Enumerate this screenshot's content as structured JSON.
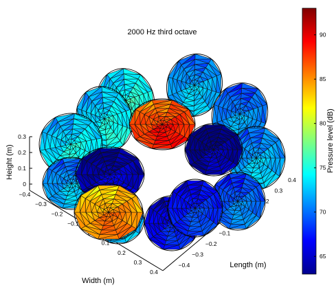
{
  "chart_data": {
    "type": "3d-surface",
    "title": "2000 Hz third octave",
    "xlabel": "Width (m)",
    "ylabel": "Length (m)",
    "zlabel": "Height (m)",
    "x_ticks": [
      "−0.4",
      "−0.3",
      "−0.2",
      "−0.1",
      "0",
      "0.1",
      "0.2",
      "0.3",
      "0.4"
    ],
    "y_ticks": [
      "−0.4",
      "−0.3",
      "−0.2",
      "−0.1",
      "0",
      "0.1",
      "0.2",
      "0.3",
      "0.4"
    ],
    "z_ticks": [
      "0",
      "0.1",
      "0.2",
      "0.3"
    ],
    "xlim": [
      -0.4,
      0.4
    ],
    "ylim": [
      -0.4,
      0.4
    ],
    "zlim": [
      0,
      0.3
    ],
    "colorbar": {
      "label": "Pressure level (dB)",
      "ticks": [
        "65",
        "70",
        "75",
        "80",
        "85",
        "90"
      ],
      "range": [
        63,
        93
      ],
      "colormap": "jet"
    },
    "grid": false,
    "units": [
      {
        "id": "u1",
        "level_db": 75
      },
      {
        "id": "u2",
        "level_db": 72
      },
      {
        "id": "u3",
        "level_db": 74
      },
      {
        "id": "u4",
        "level_db": 71
      },
      {
        "id": "u5",
        "level_db": 74
      },
      {
        "id": "u6",
        "level_db": 72
      },
      {
        "id": "u7",
        "level_db": 88
      },
      {
        "id": "u8",
        "level_db": 64
      },
      {
        "id": "u9",
        "level_db": 72
      },
      {
        "id": "u10",
        "level_db": 65
      },
      {
        "id": "u11",
        "level_db": 70
      },
      {
        "id": "u12",
        "level_db": 67
      },
      {
        "id": "u13",
        "level_db": 72
      },
      {
        "id": "u14",
        "level_db": 68
      },
      {
        "id": "u15",
        "level_db": 85
      }
    ]
  }
}
